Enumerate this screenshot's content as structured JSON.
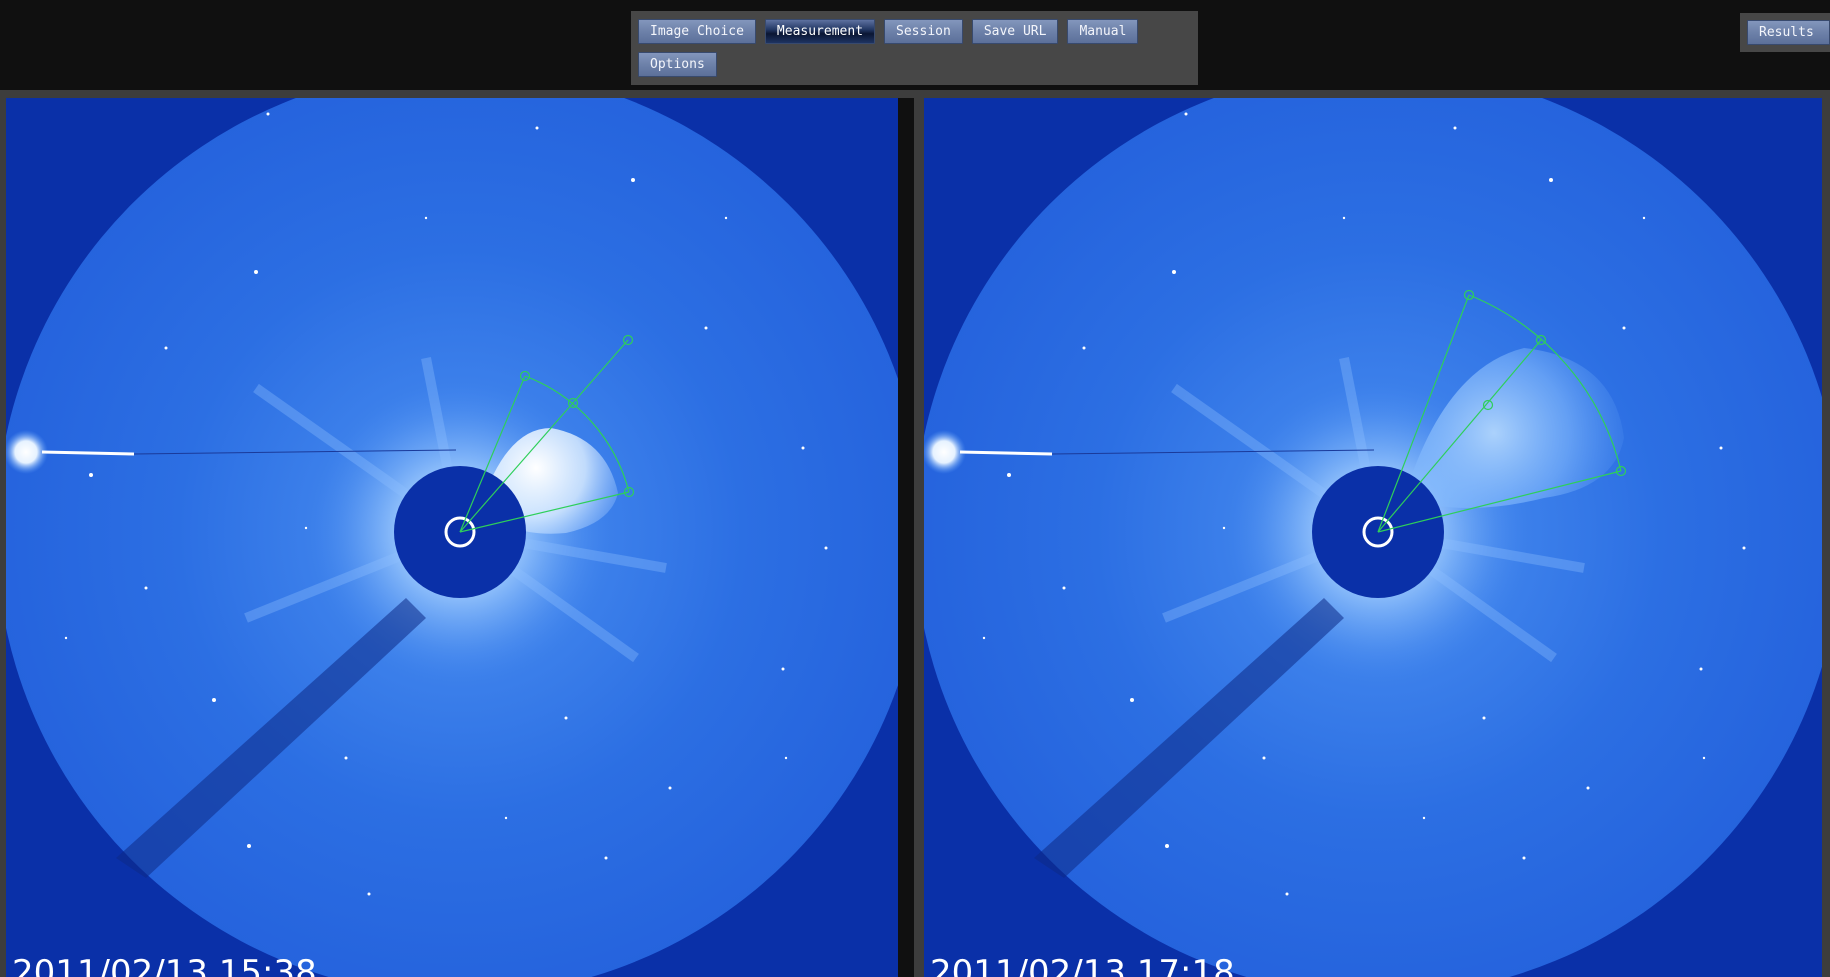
{
  "toolbar": {
    "buttons": [
      {
        "label": "Image Choice"
      },
      {
        "label": "Measurement",
        "active": true
      },
      {
        "label": "Session"
      },
      {
        "label": "Save URL"
      },
      {
        "label": "Manual"
      },
      {
        "label": "Options"
      }
    ]
  },
  "results_label": "Results",
  "panels": [
    {
      "timestamp": "2011/02/13 15:38"
    },
    {
      "timestamp": "2011/02/13 17:18"
    }
  ],
  "colors": {
    "background": "#101010",
    "toolbar": "#474747",
    "sky": "#0a30a8",
    "overlay_line": "#2ecf5a"
  }
}
